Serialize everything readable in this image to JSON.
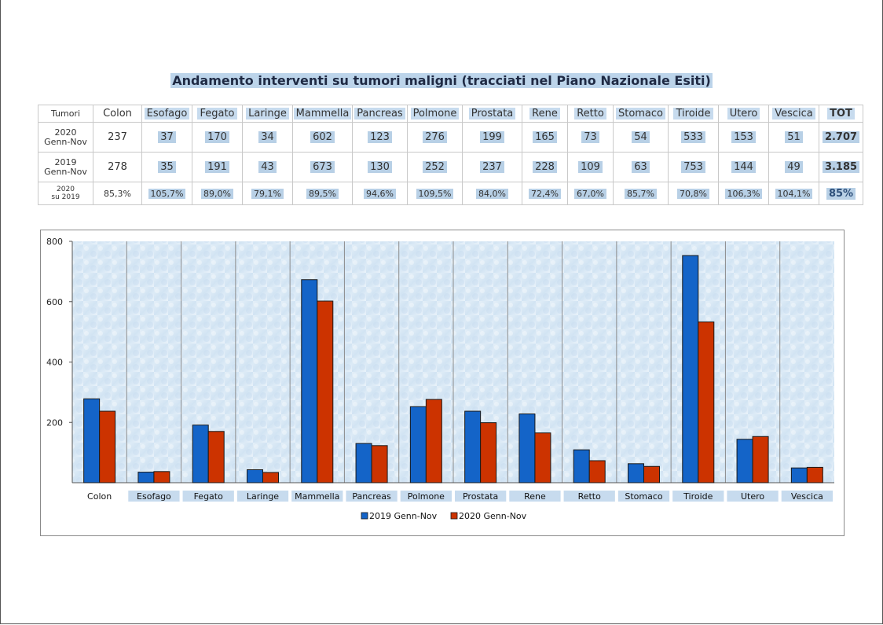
{
  "title": "Andamento interventi su tumori maligni (tracciati nel Piano Nazionale Esiti)",
  "table": {
    "corner": "Tumori",
    "columns": [
      "Colon",
      "Esofago",
      "Fegato",
      "Laringe",
      "Mammella",
      "Pancreas",
      "Polmone",
      "Prostata",
      "Rene",
      "Retto",
      "Stomaco",
      "Tiroide",
      "Utero",
      "Vescica",
      "TOT"
    ],
    "rows": [
      {
        "label_line1": "2020",
        "label_line2": "Genn-Nov",
        "values": [
          "237",
          "37",
          "170",
          "34",
          "602",
          "123",
          "276",
          "199",
          "165",
          "73",
          "54",
          "533",
          "153",
          "51",
          "2.707"
        ]
      },
      {
        "label_line1": "2019",
        "label_line2": "Genn-Nov",
        "values": [
          "278",
          "35",
          "191",
          "43",
          "673",
          "130",
          "252",
          "237",
          "228",
          "109",
          "63",
          "753",
          "144",
          "49",
          "3.185"
        ]
      },
      {
        "label_line1": "2020",
        "label_line2": "su 2019",
        "values": [
          "85,3%",
          "105,7%",
          "89,0%",
          "79,1%",
          "89,5%",
          "94,6%",
          "109,5%",
          "84,0%",
          "72,4%",
          "67,0%",
          "85,7%",
          "70,8%",
          "106,3%",
          "104,1%",
          "85%"
        ]
      }
    ]
  },
  "colors": {
    "series_2019": "#1464c8",
    "series_2020": "#cc3300",
    "text_2020": "#b8472a",
    "text_2019": "#2d78b8",
    "text_growth": "#1aa18a"
  },
  "chart_data": {
    "type": "bar",
    "categories": [
      "Colon",
      "Esofago",
      "Fegato",
      "Laringe",
      "Mammella",
      "Pancreas",
      "Polmone",
      "Prostata",
      "Rene",
      "Retto",
      "Stomaco",
      "Tiroide",
      "Utero",
      "Vescica"
    ],
    "series": [
      {
        "name": "2019 Genn-Nov",
        "values": [
          278,
          35,
          191,
          43,
          673,
          130,
          252,
          237,
          228,
          109,
          63,
          753,
          144,
          49
        ]
      },
      {
        "name": "2020 Genn-Nov",
        "values": [
          237,
          37,
          170,
          34,
          602,
          123,
          276,
          199,
          165,
          73,
          54,
          533,
          153,
          51
        ]
      }
    ],
    "ylim": [
      0,
      800
    ],
    "yticks": [
      200,
      400,
      600,
      800
    ],
    "ytick_labels": [
      "200",
      "400",
      "600",
      "800"
    ],
    "legend": "bottom",
    "grid": false
  }
}
